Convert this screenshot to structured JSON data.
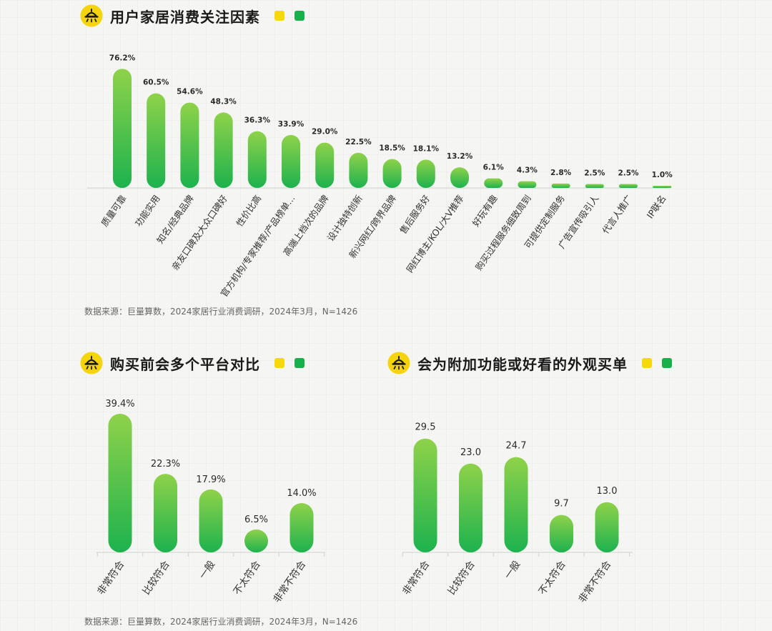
{
  "colors": {
    "bar_top": "#8fd24a",
    "bar_bottom": "#1db24e",
    "legend_yellow": "#f5d90a",
    "legend_green": "#18b04a",
    "icon_yellow": "#f6d40c"
  },
  "icons": {
    "title_icon": "lamp-icon"
  },
  "chart_data": [
    {
      "type": "bar",
      "title": "用户家居消费关注因素",
      "categories": [
        "质量可靠",
        "功能实用",
        "知名/经典品牌",
        "亲友口碑及大众口碑好",
        "性价比高",
        "官方机构/专家推荐/产品榜单...",
        "高端上档次的品牌",
        "设计独特创新",
        "新兴网红/跨界品牌",
        "售后服务好",
        "网红博主/KOL/大V推荐",
        "好玩有趣",
        "购买过程服务细致周到",
        "可提供定制服务",
        "广告宣传吸引人",
        "代言人推广",
        "IP联名"
      ],
      "values": [
        76.2,
        60.5,
        54.6,
        48.3,
        36.3,
        33.9,
        29.0,
        22.5,
        18.5,
        18.1,
        13.2,
        6.1,
        4.3,
        2.8,
        2.5,
        2.5,
        1.0
      ],
      "value_labels": [
        "76.2%",
        "60.5%",
        "54.6%",
        "48.3%",
        "36.3%",
        "33.9%",
        "29.0%",
        "22.5%",
        "18.5%",
        "18.1%",
        "13.2%",
        "6.1%",
        "4.3%",
        "2.8%",
        "2.5%",
        "2.5%",
        "1.0%"
      ],
      "ylim": [
        0,
        80
      ],
      "source": "数据来源：巨量算数，2024家居行业消费调研，2024年3月，N=1426"
    },
    {
      "type": "bar",
      "title": "购买前会多个平台对比",
      "categories": [
        "非常符合",
        "比较符合",
        "一般",
        "不太符合",
        "非常不符合"
      ],
      "values": [
        39.4,
        22.3,
        17.9,
        6.5,
        14.0
      ],
      "value_labels": [
        "39.4%",
        "22.3%",
        "17.9%",
        "6.5%",
        "14.0%"
      ],
      "ylim": [
        0,
        40
      ],
      "source": "数据来源：巨量算数，2024家居行业消费调研，2024年3月，N=1426"
    },
    {
      "type": "bar",
      "title": "会为附加功能或好看的外观买单",
      "categories": [
        "非常符合",
        "比较符合",
        "一般",
        "不太符合",
        "非常不符合"
      ],
      "values": [
        29.5,
        23.0,
        24.7,
        9.7,
        13.0
      ],
      "value_labels": [
        "29.5",
        "23.0",
        "24.7",
        "9.7",
        "13.0"
      ],
      "ylim": [
        0,
        30
      ]
    }
  ]
}
